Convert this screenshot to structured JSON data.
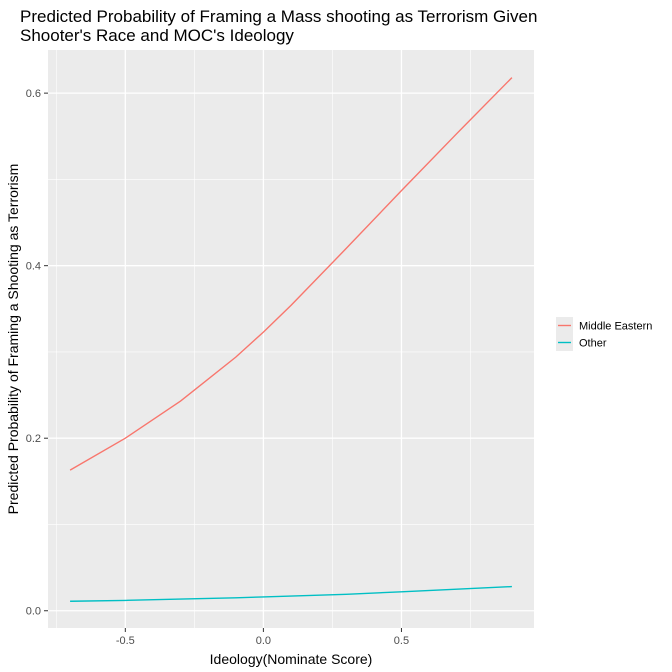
{
  "chart_data": {
    "type": "line",
    "title_lines": [
      "Predicted Probability of Framing a Mass shooting as Terrorism Given",
      "Shooter's Race and MOC's Ideology"
    ],
    "xlabel": "Ideology(Nominate Score)",
    "ylabel": "Predicted Probability of Framing a Shooting as Terrorism",
    "xlim": [
      -0.78,
      0.98
    ],
    "ylim": [
      -0.02,
      0.65
    ],
    "x_ticks": [
      -0.5,
      0.0,
      0.5
    ],
    "x_tick_labels": [
      "-0.5",
      "0.0",
      "0.5"
    ],
    "y_ticks": [
      0.0,
      0.2,
      0.4,
      0.6
    ],
    "y_tick_labels": [
      "0.0",
      "0.2",
      "0.4",
      "0.6"
    ],
    "grid": true,
    "legend_position": "right",
    "colors": {
      "panel": "#ebebeb",
      "grid": "#ffffff"
    },
    "series": [
      {
        "name": "Middle Eastern",
        "color": "#f8766d",
        "x": [
          -0.7,
          -0.5,
          -0.3,
          -0.1,
          0.0,
          0.1,
          0.3,
          0.5,
          0.7,
          0.9
        ],
        "y": [
          0.163,
          0.2,
          0.243,
          0.294,
          0.323,
          0.354,
          0.42,
          0.487,
          0.553,
          0.618
        ]
      },
      {
        "name": "Other",
        "color": "#00bfc4",
        "x": [
          -0.7,
          -0.5,
          -0.3,
          -0.1,
          0.0,
          0.1,
          0.3,
          0.5,
          0.7,
          0.9
        ],
        "y": [
          0.011,
          0.012,
          0.0135,
          0.015,
          0.016,
          0.017,
          0.019,
          0.022,
          0.025,
          0.028
        ]
      }
    ]
  }
}
